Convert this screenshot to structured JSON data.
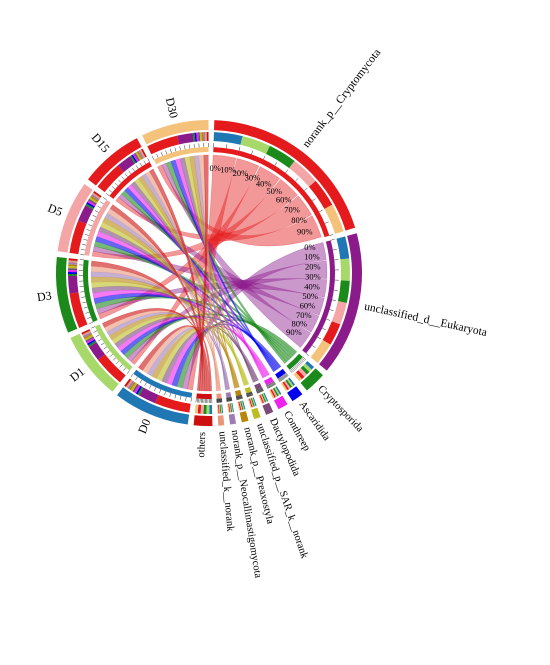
{
  "sectors": [
    {
      "label": "norank_p__Cryptomycota",
      "color": "#e41a1c",
      "kind": "taxon",
      "size": 22
    },
    {
      "label": "unclassified_d__Eukaryota",
      "color": "#8b1a8b",
      "kind": "taxon",
      "size": 17
    },
    {
      "label": "Cryptosporida",
      "color": "#1b8a1b",
      "kind": "taxon",
      "size": 2.6
    },
    {
      "label": "Ascaridida",
      "color": "#0000ee",
      "kind": "taxon",
      "size": 1.4
    },
    {
      "label": "Conthreep",
      "color": "#ee22ee",
      "kind": "taxon",
      "size": 1.2
    },
    {
      "label": "Dactylopodida",
      "color": "#7b4a7b",
      "kind": "taxon",
      "size": 0.9
    },
    {
      "label": "unclassified_p__SAR_k__norank",
      "color": "#bcbd22",
      "kind": "taxon",
      "size": 0.8
    },
    {
      "label": "norank_p__Preaxostyla",
      "color": "#b8860b",
      "kind": "taxon",
      "size": 0.8
    },
    {
      "label": "norank_p__Neocallimastigomycota",
      "color": "#9e7bb5",
      "kind": "taxon",
      "size": 0.7
    },
    {
      "label": "unclassified_k__norank",
      "color": "#e9967a",
      "kind": "taxon",
      "size": 0.7
    },
    {
      "label": "others",
      "color": "#cc1010",
      "kind": "taxon",
      "size": 2.2
    },
    {
      "label": "D0",
      "color": "#1f78b4",
      "kind": "sample",
      "size": 9
    },
    {
      "label": "D1",
      "color": "#a6d96a",
      "kind": "sample",
      "size": 8
    },
    {
      "label": "D3",
      "color": "#1b8a1b",
      "kind": "sample",
      "size": 9
    },
    {
      "label": "D5",
      "color": "#f4a6a6",
      "kind": "sample",
      "size": 8.5
    },
    {
      "label": "D15",
      "color": "#e41a1c",
      "kind": "sample",
      "size": 7.5
    },
    {
      "label": "D30",
      "color": "#f4c27a",
      "kind": "sample",
      "size": 8
    }
  ],
  "percent_ticks": [
    "0%",
    "10%",
    "20%",
    "30%",
    "40%",
    "50%",
    "60%",
    "70%",
    "80%",
    "90%"
  ],
  "colors": {
    "D0": "#1f78b4",
    "D1": "#a6d96a",
    "D3": "#1b8a1b",
    "D5": "#f4a6a6",
    "D15": "#e41a1c",
    "D30": "#f4c27a",
    "link_alpha": "0.45"
  }
}
